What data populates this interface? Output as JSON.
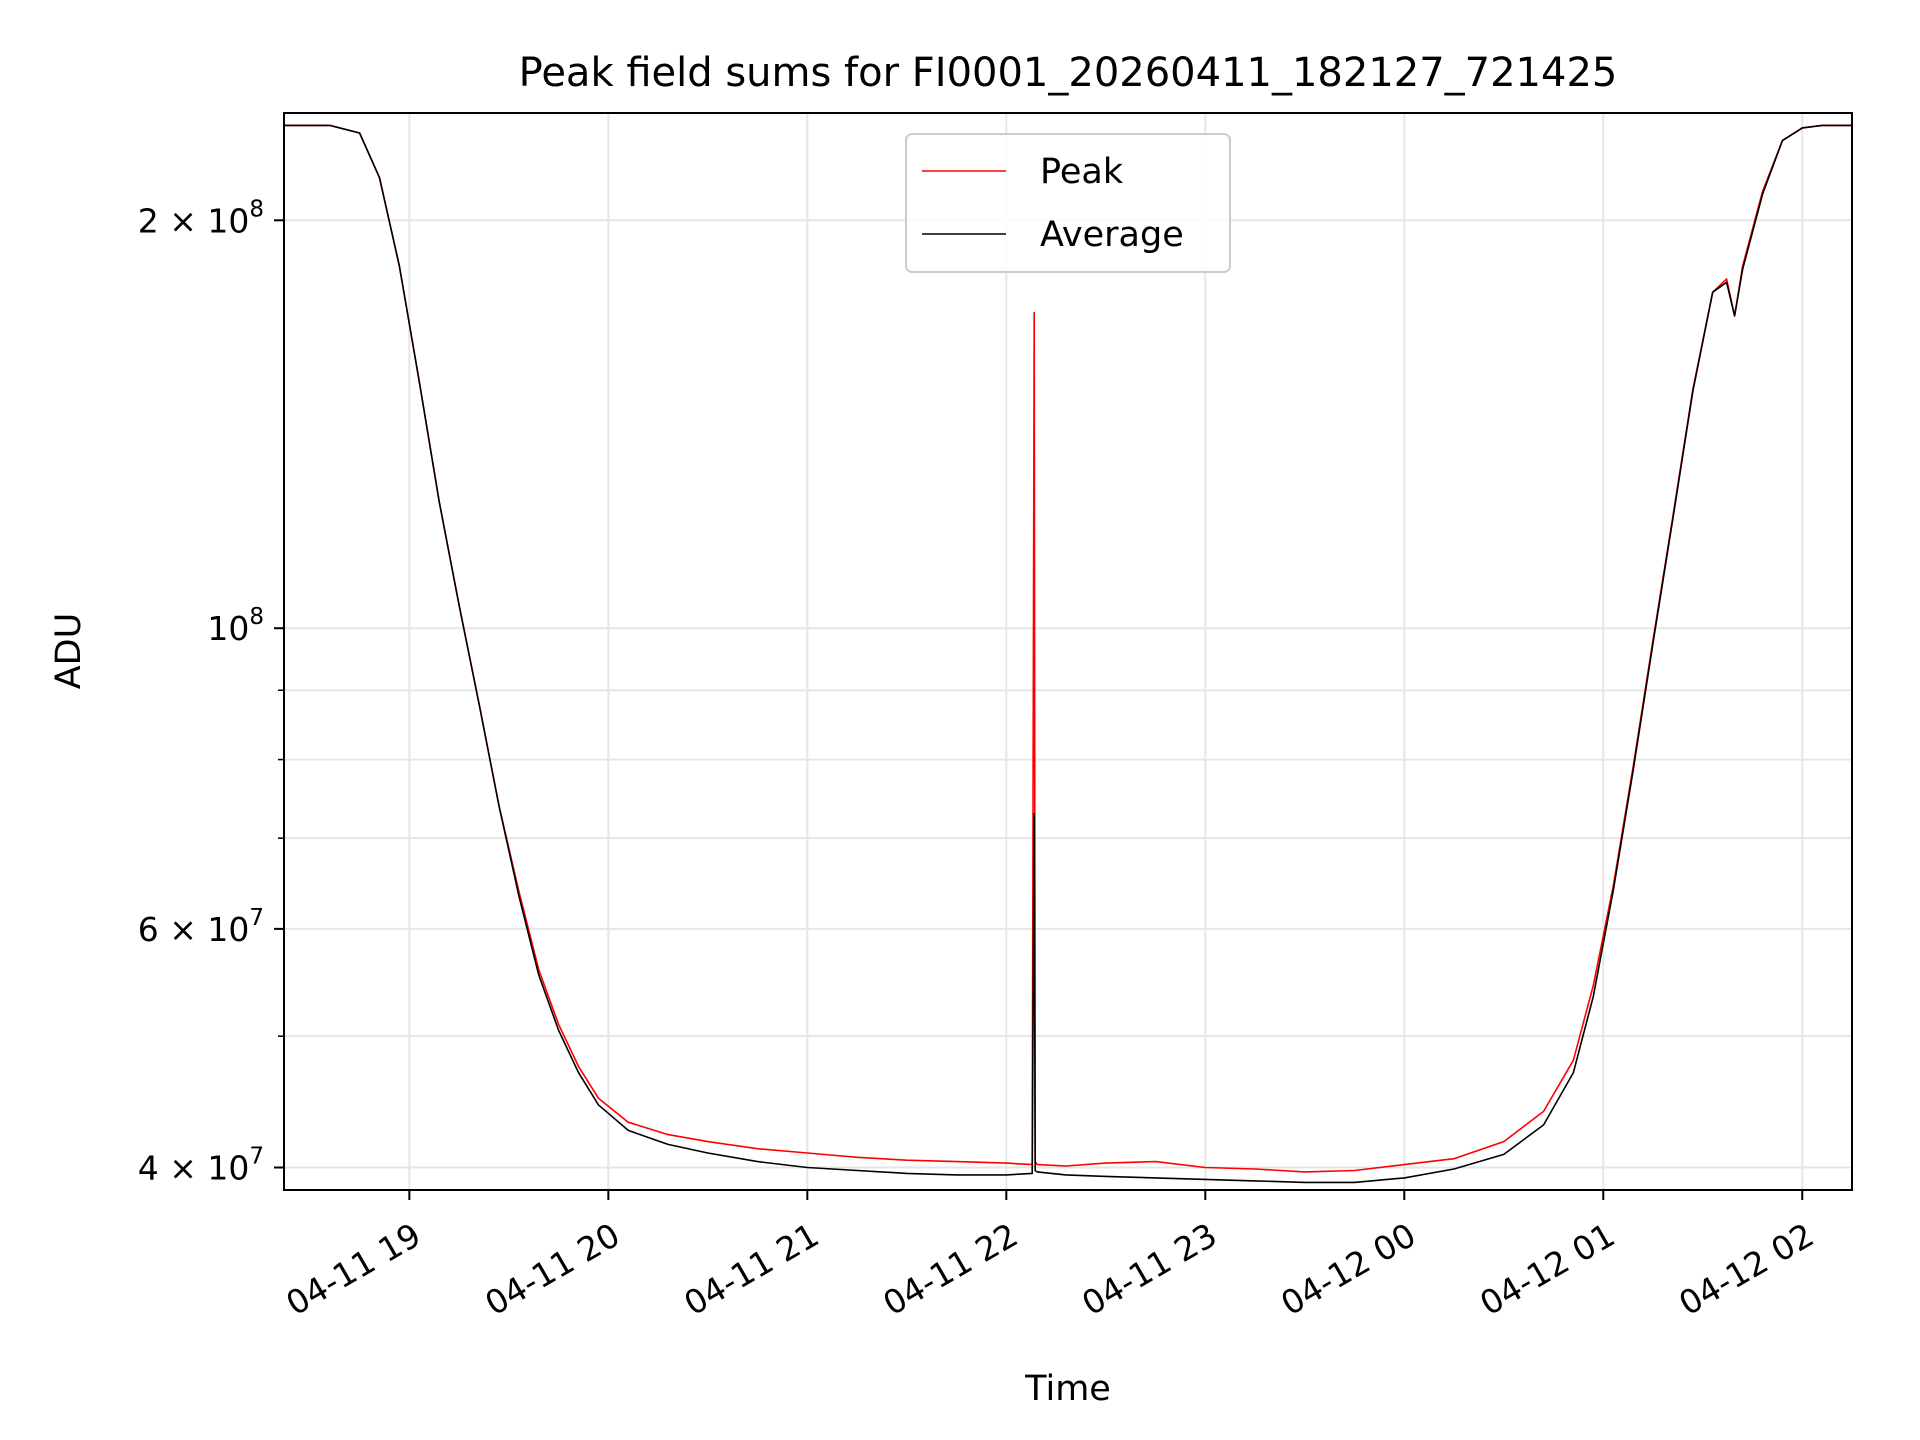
{
  "chart_data": {
    "type": "line",
    "title": "Peak field sums for FI0001_20260411_182127_721425",
    "xlabel": "Time",
    "ylabel": "ADU",
    "yscale": "log",
    "ylim": [
      38500000,
      240000000
    ],
    "xlim_hours": [
      18.37,
      26.25
    ],
    "grid": true,
    "legend_position": "upper center",
    "x_ticks": [
      {
        "hour": 19,
        "label": "04-11 19"
      },
      {
        "hour": 20,
        "label": "04-11 20"
      },
      {
        "hour": 21,
        "label": "04-11 21"
      },
      {
        "hour": 22,
        "label": "04-11 22"
      },
      {
        "hour": 23,
        "label": "04-11 23"
      },
      {
        "hour": 24,
        "label": "04-12 00"
      },
      {
        "hour": 25,
        "label": "04-12 01"
      },
      {
        "hour": 26,
        "label": "04-12 02"
      }
    ],
    "y_major_ticks": [
      {
        "value": 40000000,
        "mantissa": "4",
        "exp": "7"
      },
      {
        "value": 60000000,
        "mantissa": "6",
        "exp": "7"
      },
      {
        "value": 100000000,
        "mantissa": "",
        "exp": "8"
      },
      {
        "value": 200000000,
        "mantissa": "2",
        "exp": "8"
      }
    ],
    "y_minor_ticks": [
      50000000,
      70000000,
      80000000,
      90000000
    ],
    "series": [
      {
        "name": "Peak",
        "color": "#ff0000",
        "x_hours": [
          18.37,
          18.6,
          18.75,
          18.85,
          18.95,
          19.05,
          19.15,
          19.25,
          19.35,
          19.45,
          19.55,
          19.65,
          19.75,
          19.85,
          19.95,
          20.1,
          20.3,
          20.5,
          20.75,
          21.0,
          21.25,
          21.5,
          21.75,
          22.0,
          22.13,
          22.14,
          22.145,
          22.155,
          22.3,
          22.5,
          22.75,
          23.0,
          23.25,
          23.5,
          23.75,
          24.0,
          24.25,
          24.5,
          24.7,
          24.85,
          24.95,
          25.05,
          25.15,
          25.25,
          25.35,
          25.45,
          25.55,
          25.62,
          25.66,
          25.7,
          25.8,
          25.9,
          26.0,
          26.1,
          26.25
        ],
        "values": [
          235000000,
          235000000,
          232000000,
          215000000,
          185000000,
          152000000,
          124000000,
          104000000,
          88000000,
          74000000,
          64000000,
          56000000,
          51000000,
          47500000,
          45000000,
          43200000,
          42300000,
          41800000,
          41300000,
          41000000,
          40700000,
          40500000,
          40400000,
          40300000,
          40200000,
          171000000,
          40400000,
          40200000,
          40100000,
          40300000,
          40400000,
          40000000,
          39900000,
          39700000,
          39800000,
          40200000,
          40600000,
          41800000,
          44000000,
          48000000,
          54500000,
          64500000,
          79000000,
          98000000,
          121000000,
          150000000,
          177000000,
          181000000,
          170000000,
          185000000,
          210000000,
          229000000,
          234000000,
          235000000,
          235000000
        ]
      },
      {
        "name": "Average",
        "color": "#000000",
        "x_hours": [
          18.37,
          18.6,
          18.75,
          18.85,
          18.95,
          19.05,
          19.15,
          19.25,
          19.35,
          19.45,
          19.55,
          19.65,
          19.75,
          19.85,
          19.95,
          20.1,
          20.3,
          20.5,
          20.75,
          21.0,
          21.25,
          21.5,
          21.75,
          22.0,
          22.13,
          22.14,
          22.145,
          22.155,
          22.3,
          22.5,
          22.75,
          23.0,
          23.25,
          23.5,
          23.75,
          24.0,
          24.25,
          24.5,
          24.7,
          24.85,
          24.95,
          25.05,
          25.15,
          25.25,
          25.35,
          25.45,
          25.55,
          25.62,
          25.66,
          25.7,
          25.8,
          25.9,
          26.0,
          26.1,
          26.25
        ],
        "values": [
          235000000,
          235000000,
          232000000,
          215000000,
          185000000,
          152000000,
          124000000,
          104000000,
          88000000,
          74000000,
          63500000,
          55500000,
          50500000,
          47000000,
          44500000,
          42600000,
          41600000,
          41000000,
          40400000,
          40000000,
          39800000,
          39600000,
          39500000,
          39500000,
          39600000,
          73000000,
          39800000,
          39700000,
          39500000,
          39400000,
          39300000,
          39200000,
          39100000,
          39000000,
          39000000,
          39300000,
          39900000,
          40900000,
          43000000,
          47000000,
          53500000,
          64000000,
          78500000,
          97500000,
          120500000,
          149500000,
          177000000,
          180000000,
          170000000,
          184000000,
          209000000,
          229000000,
          234000000,
          235000000,
          235000000
        ]
      }
    ]
  }
}
